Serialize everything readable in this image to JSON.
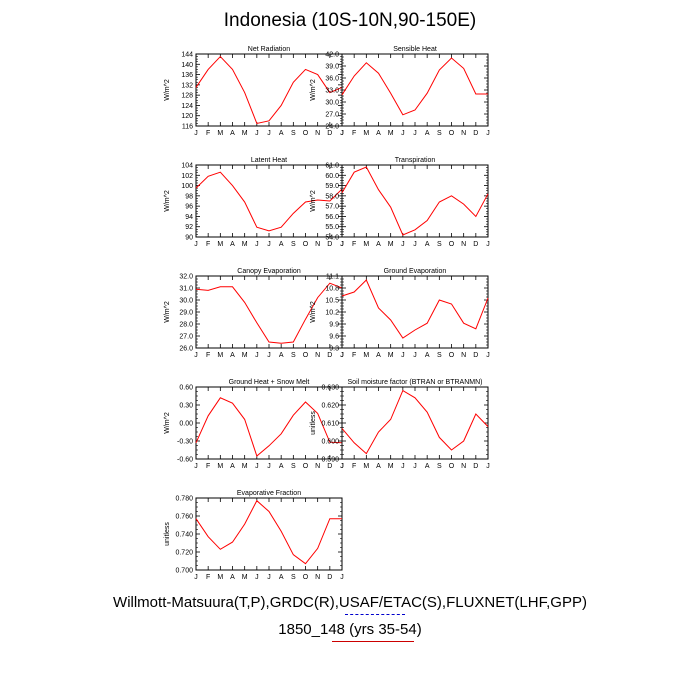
{
  "title": "Indonesia (10S-10N,90-150E)",
  "caption_line1": "Willmott-Matsuura(T,P),GRDC(R),USAF/ETAC(S),FLUXNET(LHF,GPP)",
  "caption_line2": "1850_148 (yrs 35-54)",
  "colors": {
    "series": "#ff0000",
    "link_blue": "#0000cc",
    "link_red": "#cc0000"
  },
  "chart_data": [
    {
      "type": "line",
      "title": "Net Radiation",
      "ylabel": "W/m^2",
      "categories": [
        "J",
        "F",
        "M",
        "A",
        "M",
        "J",
        "J",
        "A",
        "S",
        "O",
        "N",
        "D",
        "J"
      ],
      "ylim": [
        116,
        144
      ],
      "yticks": [
        "116",
        "120",
        "124",
        "128",
        "132",
        "136",
        "140",
        "144"
      ],
      "values": [
        131,
        138,
        143,
        138,
        129,
        117,
        118,
        124,
        133,
        138,
        136,
        129,
        131
      ]
    },
    {
      "type": "line",
      "title": "Sensible Heat",
      "ylabel": "W/m^2",
      "categories": [
        "J",
        "F",
        "M",
        "A",
        "M",
        "J",
        "J",
        "A",
        "S",
        "O",
        "N",
        "D",
        "J"
      ],
      "ylim": [
        24.0,
        42.0
      ],
      "yticks": [
        "24.0",
        "27.0",
        "30.0",
        "33.0",
        "36.0",
        "39.0",
        "42.0"
      ],
      "values": [
        31.8,
        36.5,
        39.8,
        37.2,
        32.2,
        26.8,
        28.0,
        32.2,
        38.0,
        41.0,
        38.4,
        32.0,
        32.0
      ]
    },
    {
      "type": "line",
      "title": "Latent Heat",
      "ylabel": "W/m^2",
      "categories": [
        "J",
        "F",
        "M",
        "A",
        "M",
        "J",
        "J",
        "A",
        "S",
        "O",
        "N",
        "D",
        "J"
      ],
      "ylim": [
        90,
        104
      ],
      "yticks": [
        "90",
        "92",
        "94",
        "96",
        "98",
        "100",
        "102",
        "104"
      ],
      "values": [
        99.5,
        101.8,
        102.6,
        100.0,
        96.8,
        91.9,
        91.2,
        91.9,
        94.6,
        96.8,
        97.2,
        97.0,
        99.3
      ]
    },
    {
      "type": "line",
      "title": "Transpiration",
      "ylabel": "W/m^2",
      "categories": [
        "J",
        "F",
        "M",
        "A",
        "M",
        "J",
        "J",
        "A",
        "S",
        "O",
        "N",
        "D",
        "J"
      ],
      "ylim": [
        54.0,
        61.0
      ],
      "yticks": [
        "54.0",
        "55.0",
        "56.0",
        "57.0",
        "58.0",
        "59.0",
        "60.0",
        "61.0"
      ],
      "values": [
        58.3,
        60.3,
        60.8,
        58.6,
        56.9,
        54.2,
        54.7,
        55.6,
        57.4,
        58.0,
        57.2,
        56.0,
        58.2
      ]
    },
    {
      "type": "line",
      "title": "Canopy Evaporation",
      "ylabel": "W/m^2",
      "categories": [
        "J",
        "F",
        "M",
        "A",
        "M",
        "J",
        "J",
        "A",
        "S",
        "O",
        "N",
        "D",
        "J"
      ],
      "ylim": [
        26.0,
        32.0
      ],
      "yticks": [
        "26.0",
        "27.0",
        "28.0",
        "29.0",
        "30.0",
        "31.0",
        "32.0"
      ],
      "values": [
        30.9,
        30.8,
        31.1,
        31.1,
        29.8,
        28.1,
        26.5,
        26.4,
        26.5,
        28.4,
        30.2,
        31.4,
        31.0
      ]
    },
    {
      "type": "line",
      "title": "Ground Evaporation",
      "ylabel": "W/m^2",
      "categories": [
        "J",
        "F",
        "M",
        "A",
        "M",
        "J",
        "J",
        "A",
        "S",
        "O",
        "N",
        "D",
        "J"
      ],
      "ylim": [
        9.3,
        11.1
      ],
      "yticks": [
        "9.3",
        "9.6",
        "9.9",
        "10.2",
        "10.5",
        "10.8",
        "11.1"
      ],
      "values": [
        10.6,
        10.7,
        11.0,
        10.3,
        10.0,
        9.55,
        9.75,
        9.92,
        10.5,
        10.4,
        9.92,
        9.78,
        10.55
      ]
    },
    {
      "type": "line",
      "title": "Ground Heat + Snow Melt",
      "ylabel": "W/m^2",
      "categories": [
        "J",
        "F",
        "M",
        "A",
        "M",
        "J",
        "J",
        "A",
        "S",
        "O",
        "N",
        "D",
        "J"
      ],
      "ylim": [
        -0.6,
        0.6
      ],
      "yticks": [
        "-0.60",
        "-0.30",
        "0.00",
        "0.30",
        "0.60"
      ],
      "values": [
        -0.33,
        0.12,
        0.42,
        0.33,
        0.06,
        -0.55,
        -0.38,
        -0.18,
        0.13,
        0.35,
        0.16,
        -0.32,
        -0.33
      ]
    },
    {
      "type": "line",
      "title": "Soil moisture factor (BTRAN or BTRANMN)",
      "ylabel": "unitless",
      "categories": [
        "J",
        "F",
        "M",
        "A",
        "M",
        "J",
        "J",
        "A",
        "S",
        "O",
        "N",
        "D",
        "J"
      ],
      "ylim": [
        0.59,
        0.63
      ],
      "yticks": [
        "0.590",
        "0.600",
        "0.610",
        "0.620",
        "0.630"
      ],
      "values": [
        0.607,
        0.599,
        0.593,
        0.605,
        0.612,
        0.628,
        0.624,
        0.616,
        0.602,
        0.595,
        0.6,
        0.615,
        0.608
      ]
    },
    {
      "type": "line",
      "title": "Evaporative Fraction",
      "ylabel": "unitless",
      "categories": [
        "J",
        "F",
        "M",
        "A",
        "M",
        "J",
        "J",
        "A",
        "S",
        "O",
        "N",
        "D",
        "J"
      ],
      "ylim": [
        0.7,
        0.78
      ],
      "yticks": [
        "0.700",
        "0.720",
        "0.740",
        "0.760",
        "0.780"
      ],
      "values": [
        0.757,
        0.737,
        0.723,
        0.731,
        0.751,
        0.777,
        0.765,
        0.743,
        0.717,
        0.707,
        0.724,
        0.757,
        0.757
      ]
    }
  ]
}
